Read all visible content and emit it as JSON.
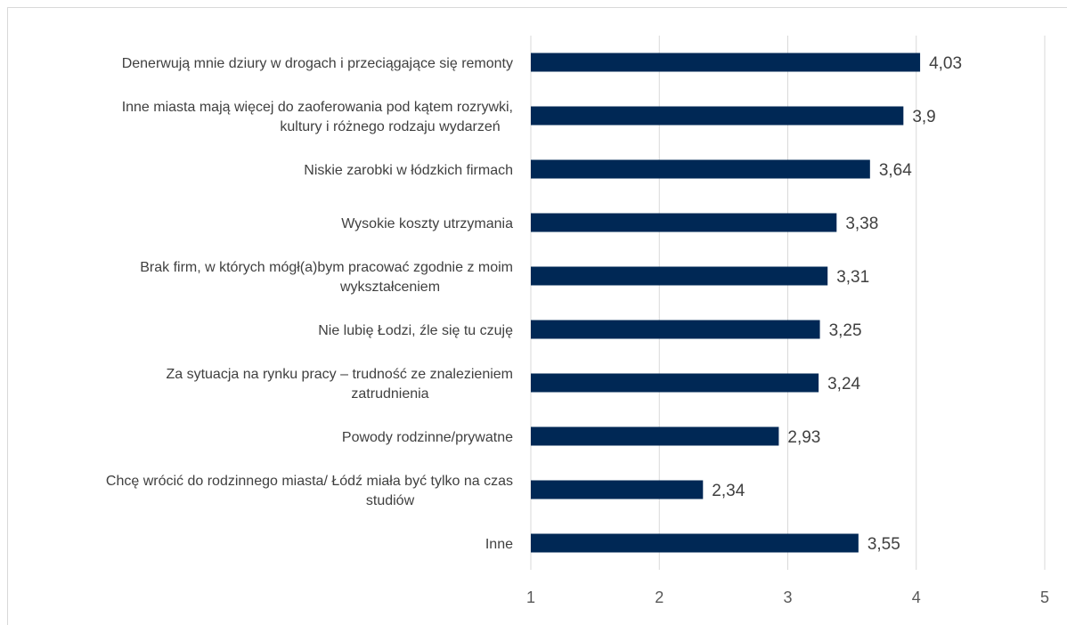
{
  "chart_data": {
    "type": "bar",
    "orientation": "horizontal",
    "title": "",
    "xlabel": "",
    "ylabel": "",
    "xlim": [
      1,
      5
    ],
    "ticks": [
      "1",
      "2",
      "3",
      "4",
      "5"
    ],
    "grid": true,
    "legend": "none",
    "bar_color": "#002855",
    "categories": [
      [
        "Denerwują mnie dziury w drogach i przeciągające się remonty"
      ],
      [
        "Inne miasta mają więcej do zaoferowania pod kątem rozrywki,",
        "kultury i różnego rodzaju wydarzeń"
      ],
      [
        "Niskie zarobki w łódzkich firmach"
      ],
      [
        "Wysokie koszty utrzymania"
      ],
      [
        "Brak firm, w których mógł(a)bym pracować zgodnie z moim",
        "wykształceniem"
      ],
      [
        "Nie lubię Łodzi, źle się tu czuję"
      ],
      [
        "Za sytuacja na rynku pracy – trudność ze znalezieniem",
        "zatrudnienia"
      ],
      [
        "Powody rodzinne/prywatne"
      ],
      [
        "Chcę wrócić do rodzinnego miasta/ Łódź miała być tylko na czas",
        "studiów"
      ],
      [
        "Inne"
      ]
    ],
    "values": [
      4.03,
      3.9,
      3.64,
      3.38,
      3.31,
      3.25,
      3.24,
      2.93,
      2.34,
      3.55
    ],
    "value_labels": [
      "4,03",
      "3,9",
      "3,64",
      "3,38",
      "3,31",
      "3,25",
      "3,24",
      "2,93",
      "2,34",
      "3,55"
    ]
  }
}
